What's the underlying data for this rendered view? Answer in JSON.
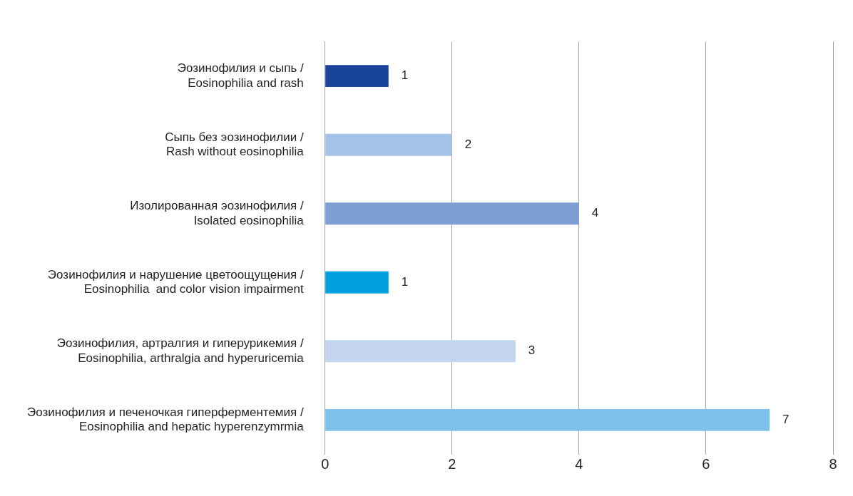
{
  "chart_data": {
    "type": "bar",
    "orientation": "horizontal",
    "categories": [
      "Эозинофилия и сыпь / Eosinophilia and rash",
      "Сыпь без эозинофилии / Rash without eosinophilia",
      "Изолированная эозинофилия / Isolated eosinophilia",
      "Эозинофилия и нарушение цветоощущения / Eosinophilia  and color vision impairment",
      "Эозинофилия, артралгия и гиперурикемия / Eosinophilia, arthralgia and hyperuricemia",
      "Эозинофилия и печеночкая гиперферментемия / Eosinophilia and hepatic hyperenzymrmia"
    ],
    "values": [
      1,
      2,
      4,
      1,
      3,
      7
    ],
    "colors": [
      "#1a449c",
      "#a4c2e6",
      "#7f9fd4",
      "#009fe0",
      "#c5d4ee",
      "#7fc0ea"
    ],
    "xlim": [
      0,
      8
    ],
    "xticks": [
      0,
      2,
      4,
      6,
      8
    ],
    "grid": "x",
    "data_labels": true,
    "legend": false
  }
}
